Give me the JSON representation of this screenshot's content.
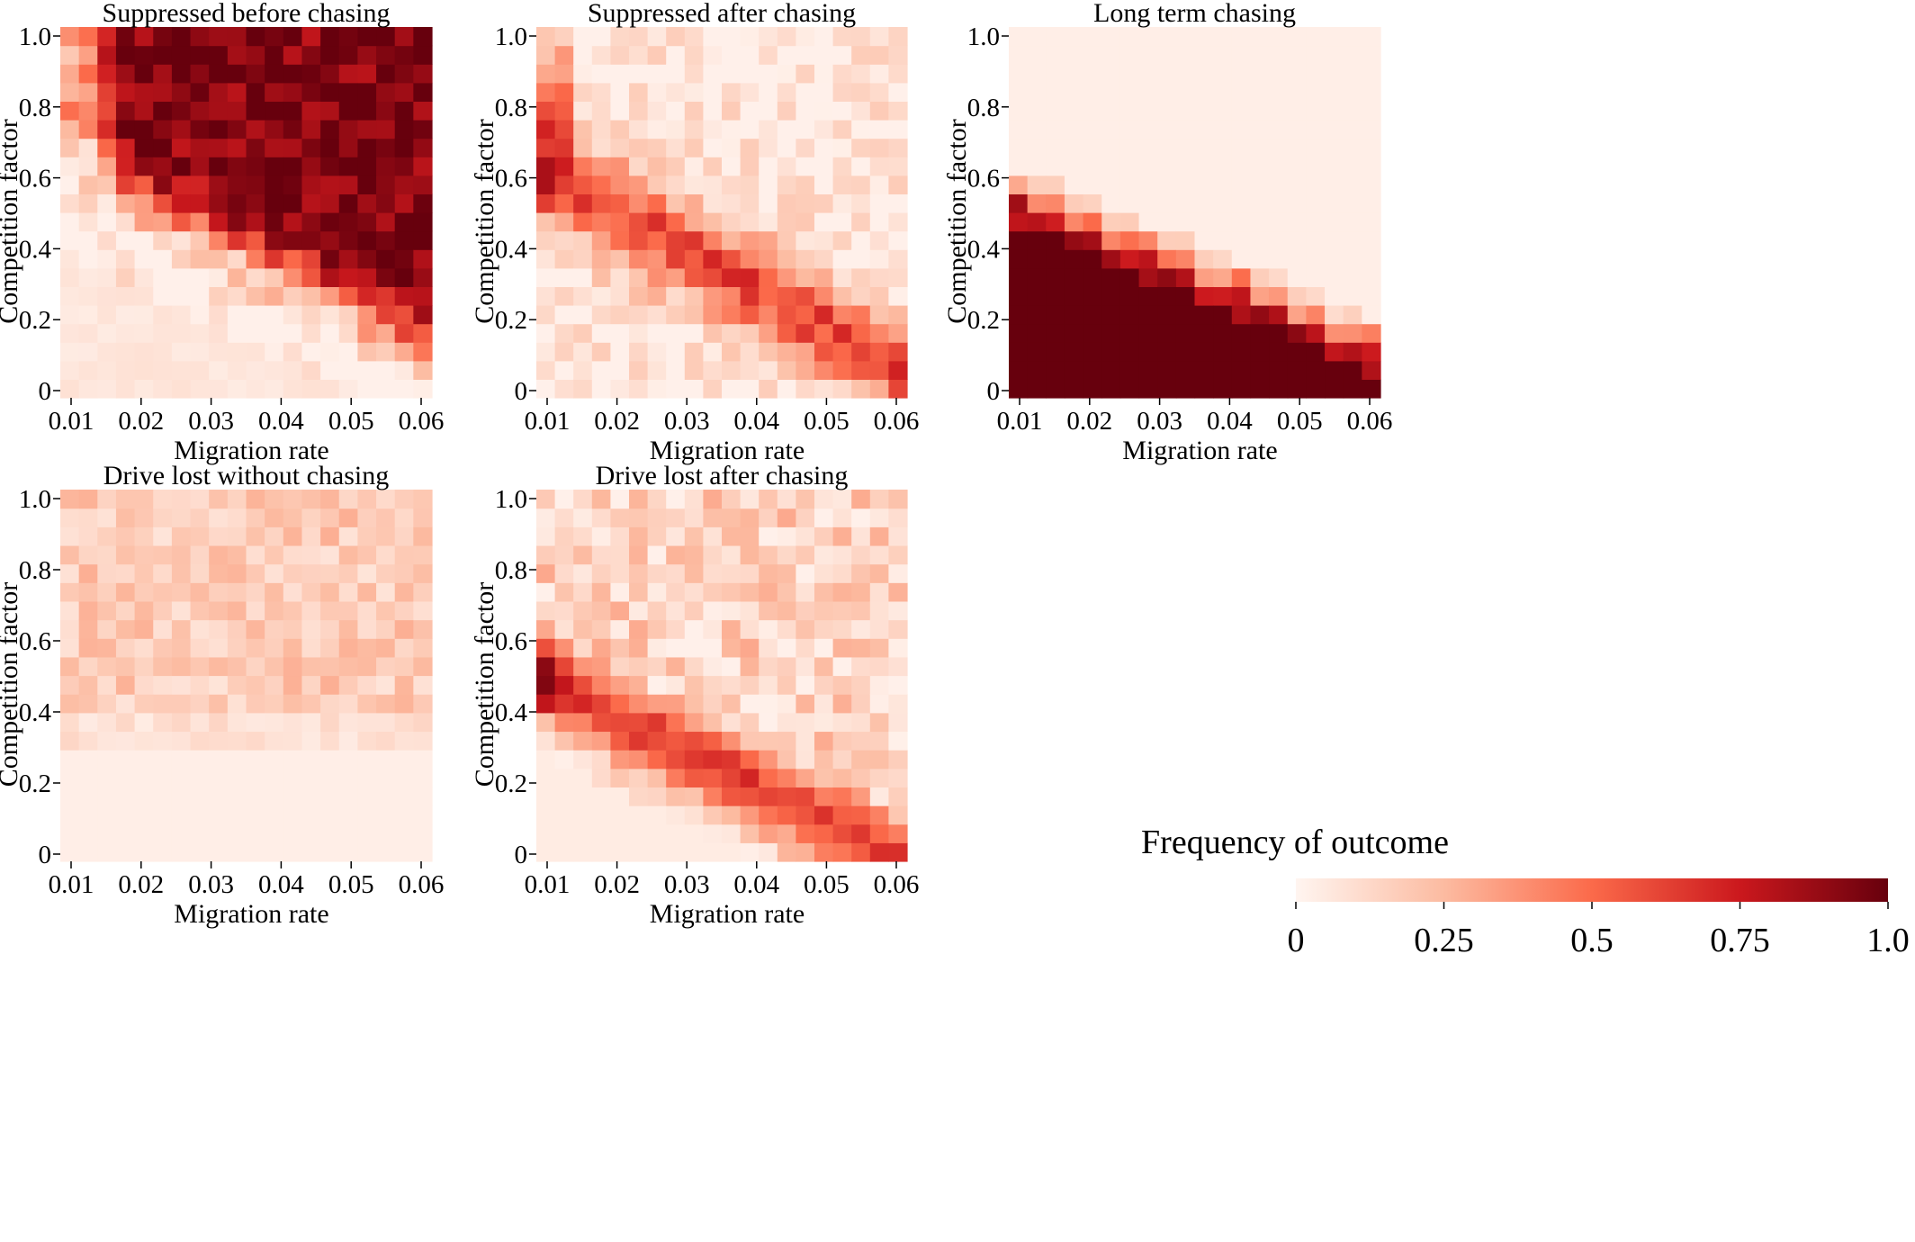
{
  "chart_data": [
    {
      "type": "heatmap",
      "title": "Suppressed before chasing",
      "xlabel": "Migration rate",
      "ylabel": "Competition factor",
      "xticks": [
        "0.01",
        "0.02",
        "0.03",
        "0.04",
        "0.05",
        "0.06"
      ],
      "yticks": [
        "0",
        "0.2",
        "0.4",
        "0.6",
        "0.8",
        "1.0"
      ],
      "xlim": [
        0.01,
        0.06
      ],
      "ylim": [
        0,
        1.0
      ],
      "pattern": "suppressed_before",
      "description_values": {
        "low": 0.02,
        "high": 0.95
      }
    },
    {
      "type": "heatmap",
      "title": "Suppressed after chasing",
      "xlabel": "Migration rate",
      "ylabel": "Competition factor",
      "xticks": [
        "0.01",
        "0.02",
        "0.03",
        "0.04",
        "0.05",
        "0.06"
      ],
      "yticks": [
        "0",
        "0.2",
        "0.4",
        "0.6",
        "0.8",
        "1.0"
      ],
      "xlim": [
        0.01,
        0.06
      ],
      "ylim": [
        0,
        1.0
      ],
      "pattern": "suppressed_after"
    },
    {
      "type": "heatmap",
      "title": "Long term chasing",
      "xlabel": "Migration rate",
      "ylabel": "Competition factor",
      "xticks": [
        "0.01",
        "0.02",
        "0.03",
        "0.04",
        "0.05",
        "0.06"
      ],
      "yticks": [
        "0",
        "0.2",
        "0.4",
        "0.6",
        "0.8",
        "1.0"
      ],
      "xlim": [
        0.01,
        0.06
      ],
      "ylim": [
        0,
        1.0
      ],
      "pattern": "long_term"
    },
    {
      "type": "heatmap",
      "title": "Drive lost without chasing",
      "xlabel": "Migration rate",
      "ylabel": "Competition factor",
      "xticks": [
        "0.01",
        "0.02",
        "0.03",
        "0.04",
        "0.05",
        "0.06"
      ],
      "yticks": [
        "0",
        "0.2",
        "0.4",
        "0.6",
        "0.8",
        "1.0"
      ],
      "xlim": [
        0.01,
        0.06
      ],
      "ylim": [
        0,
        1.0
      ],
      "pattern": "lost_without"
    },
    {
      "type": "heatmap",
      "title": "Drive lost after chasing",
      "xlabel": "Migration rate",
      "ylabel": "Competition factor",
      "xticks": [
        "0.01",
        "0.02",
        "0.03",
        "0.04",
        "0.05",
        "0.06"
      ],
      "yticks": [
        "0",
        "0.2",
        "0.4",
        "0.6",
        "0.8",
        "1.0"
      ],
      "xlim": [
        0.01,
        0.06
      ],
      "ylim": [
        0,
        1.0
      ],
      "pattern": "lost_after"
    }
  ],
  "colorbar": {
    "title": "Frequency of outcome",
    "ticks": [
      "0",
      "0.25",
      "0.5",
      "0.75",
      "1.0"
    ],
    "range": [
      0,
      1
    ],
    "colors": [
      "#fff5f0",
      "#fcbba1",
      "#fb6a4a",
      "#cb181d",
      "#67000d"
    ]
  }
}
